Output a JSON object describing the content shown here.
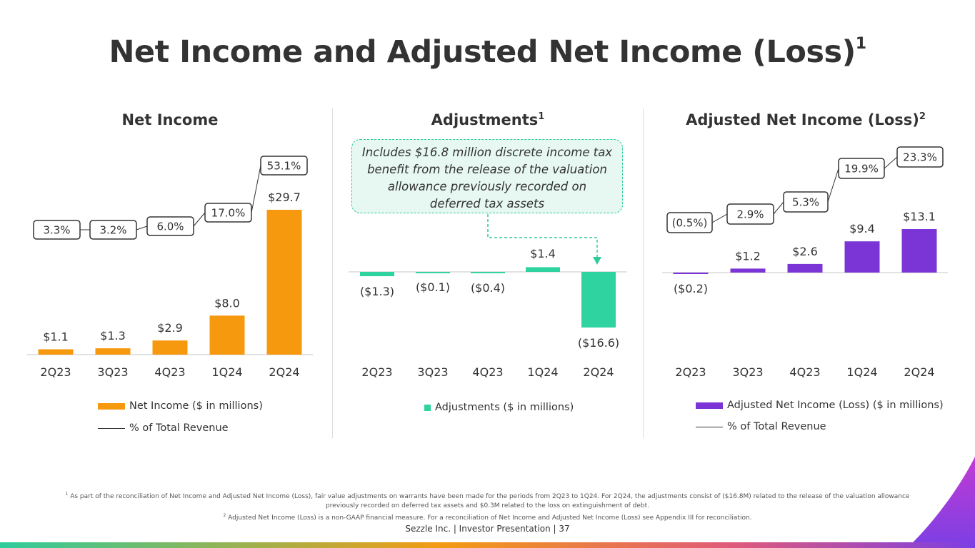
{
  "title": "Net Income and Adjusted Net Income (Loss)",
  "title_sup": "1",
  "panels": {
    "net_income": {
      "title": "Net Income",
      "sup": ""
    },
    "adjustments": {
      "title": "Adjustments",
      "sup": "1"
    },
    "adjusted": {
      "title": "Adjusted Net Income (Loss)",
      "sup": "2"
    }
  },
  "callout_text": "Includes $16.8 million discrete income tax benefit from the release of the valuation allowance previously recorded on deferred tax assets",
  "legends": {
    "net_income_bar": "Net Income ($ in millions)",
    "net_income_line": "% of Total Revenue",
    "adjustments_bar": "Adjustments ($ in millions)",
    "adjusted_bar": "Adjusted Net Income (Loss) ($ in millions)",
    "adjusted_line": "% of Total Revenue"
  },
  "colors": {
    "orange": "#f7990e",
    "teal": "#2ed3a0",
    "purple": "#7b35d6",
    "text": "#333333"
  },
  "footnote1_sup": "1",
  "footnote1": "As part of the reconciliation of Net Income and Adjusted Net Income (Loss), fair value adjustments on warrants have been made for the periods from 2Q23 to 1Q24. For 2Q24, the adjustments consist of ($16.8M) related to the release of the valuation allowance previously recorded on deferred tax assets and $0.3M related to the loss on extinguishment of debt.",
  "footnote2_sup": "2",
  "footnote2": "Adjusted Net Income (Loss) is a non-GAAP financial measure. For a reconciliation of Net Income and Adjusted Net Income (Loss) see Appendix III for reconciliation.",
  "footer": "Sezzle Inc. | Investor Presentation | 37",
  "chart_data": [
    {
      "type": "bar",
      "title": "Net Income",
      "categories": [
        "2Q23",
        "3Q23",
        "4Q23",
        "1Q24",
        "2Q24"
      ],
      "values": [
        1.1,
        1.3,
        2.9,
        8.0,
        29.7
      ],
      "value_labels": [
        "$1.1",
        "$1.3",
        "$2.9",
        "$8.0",
        "$29.7"
      ],
      "line_series": {
        "name": "% of Total Revenue",
        "values": [
          3.3,
          3.2,
          6.0,
          17.0,
          53.1
        ],
        "labels": [
          "3.3%",
          "3.2%",
          "6.0%",
          "17.0%",
          "53.1%"
        ]
      },
      "legend": [
        "Net Income ($ in millions)",
        "% of Total Revenue"
      ]
    },
    {
      "type": "bar",
      "title": "Adjustments",
      "categories": [
        "2Q23",
        "3Q23",
        "4Q23",
        "1Q24",
        "2Q24"
      ],
      "values": [
        -1.3,
        -0.1,
        -0.4,
        1.4,
        -16.6
      ],
      "value_labels": [
        "($1.3)",
        "($0.1)",
        "($0.4)",
        "$1.4",
        "($16.6)"
      ],
      "legend": [
        "Adjustments ($ in millions)"
      ]
    },
    {
      "type": "bar",
      "title": "Adjusted Net Income (Loss)",
      "categories": [
        "2Q23",
        "3Q23",
        "4Q23",
        "1Q24",
        "2Q24"
      ],
      "values": [
        -0.2,
        1.2,
        2.6,
        9.4,
        13.1
      ],
      "value_labels": [
        "($0.2)",
        "$1.2",
        "$2.6",
        "$9.4",
        "$13.1"
      ],
      "line_series": {
        "name": "% of Total Revenue",
        "values": [
          -0.5,
          2.9,
          5.3,
          19.9,
          23.3
        ],
        "labels": [
          "(0.5%)",
          "2.9%",
          "5.3%",
          "19.9%",
          "23.3%"
        ]
      },
      "legend": [
        "Adjusted Net Income (Loss) ($ in millions)",
        "% of Total Revenue"
      ]
    }
  ]
}
